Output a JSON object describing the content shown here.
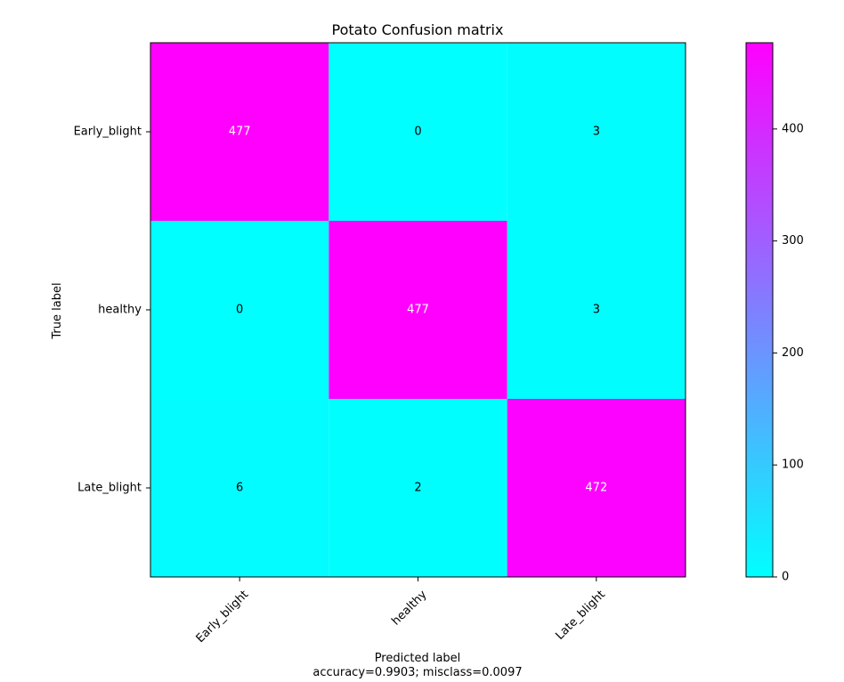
{
  "chart_data": {
    "type": "heatmap",
    "title": "Potato Confusion matrix",
    "xlabel": "Predicted label",
    "xlabel_subtitle": "accuracy=0.9903; misclass=0.0097",
    "ylabel": "True label",
    "x_categories": [
      "Early_blight",
      "healthy",
      "Late_blight"
    ],
    "y_categories": [
      "Early_blight",
      "healthy",
      "Late_blight"
    ],
    "matrix": [
      [
        477,
        0,
        3
      ],
      [
        0,
        477,
        3
      ],
      [
        6,
        2,
        472
      ]
    ],
    "colormap": "cool",
    "color_low": "#00ffff",
    "color_high": "#ff00ff",
    "colorbar_range": [
      0,
      477
    ],
    "colorbar_ticks": [
      0,
      100,
      200,
      300,
      400
    ],
    "grid": false
  }
}
